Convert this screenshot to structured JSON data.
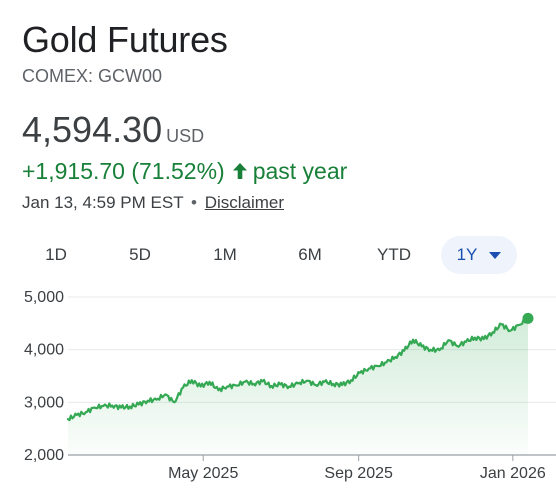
{
  "header": {
    "title": "Gold Futures",
    "subtitle": "COMEX: GCW00"
  },
  "quote": {
    "price": "4,594.30",
    "currency": "USD",
    "change": "+1,915.70 (71.52%)",
    "period": "past year",
    "timestamp": "Jan 13, 4:59 PM EST",
    "separator": "•",
    "disclaimer": "Disclaimer"
  },
  "colors": {
    "positive": "#188038",
    "line": "#34a853",
    "active_tab_bg": "#eef3fc",
    "active_tab_text": "#1a4fb0"
  },
  "tabs": [
    {
      "label": "1D",
      "active": false
    },
    {
      "label": "5D",
      "active": false
    },
    {
      "label": "1M",
      "active": false
    },
    {
      "label": "6M",
      "active": false
    },
    {
      "label": "YTD",
      "active": false
    },
    {
      "label": "1Y",
      "active": true
    }
  ],
  "icons": {
    "change_direction": "arrow-up-icon",
    "range_dropdown": "caret-down-icon"
  },
  "chart_data": {
    "type": "area",
    "title": "",
    "xlabel": "",
    "ylabel": "",
    "ylim": [
      2000,
      5000
    ],
    "y_ticks": [
      "5,000",
      "4,000",
      "3,000",
      "2,000"
    ],
    "y_tick_values": [
      5000,
      4000,
      3000,
      2000
    ],
    "x_ticks": [
      "May 2025",
      "Sep 2025",
      "Jan 2026"
    ],
    "x_tick_values": [
      "2025-05-01",
      "2025-09-01",
      "2026-01-01"
    ],
    "grid": true,
    "last_point_marker": true,
    "series": [
      {
        "x": [
          "2025-01-14",
          "2025-01-21",
          "2025-01-28",
          "2025-02-04",
          "2025-02-11",
          "2025-02-18",
          "2025-02-25",
          "2025-03-04",
          "2025-03-11",
          "2025-03-18",
          "2025-03-25",
          "2025-04-01",
          "2025-04-08",
          "2025-04-15",
          "2025-04-22",
          "2025-04-29",
          "2025-05-06",
          "2025-05-13",
          "2025-05-20",
          "2025-05-27",
          "2025-06-03",
          "2025-06-10",
          "2025-06-17",
          "2025-06-24",
          "2025-07-01",
          "2025-07-08",
          "2025-07-15",
          "2025-07-22",
          "2025-07-29",
          "2025-08-05",
          "2025-08-12",
          "2025-08-19",
          "2025-08-26",
          "2025-09-02",
          "2025-09-09",
          "2025-09-16",
          "2025-09-23",
          "2025-09-30",
          "2025-10-07",
          "2025-10-14",
          "2025-10-21",
          "2025-10-28",
          "2025-11-04",
          "2025-11-11",
          "2025-11-18",
          "2025-11-25",
          "2025-12-02",
          "2025-12-09",
          "2025-12-16",
          "2025-12-23",
          "2025-12-30",
          "2026-01-06",
          "2026-01-13"
        ],
        "values": [
          2680,
          2760,
          2810,
          2900,
          2930,
          2940,
          2900,
          2920,
          2960,
          3030,
          3050,
          3150,
          3000,
          3280,
          3420,
          3300,
          3390,
          3230,
          3300,
          3320,
          3390,
          3350,
          3400,
          3310,
          3340,
          3300,
          3360,
          3410,
          3330,
          3390,
          3350,
          3330,
          3420,
          3560,
          3640,
          3690,
          3760,
          3860,
          3980,
          4190,
          4060,
          4000,
          3990,
          4180,
          4070,
          4150,
          4230,
          4200,
          4330,
          4480,
          4360,
          4470,
          4594
        ]
      }
    ]
  }
}
